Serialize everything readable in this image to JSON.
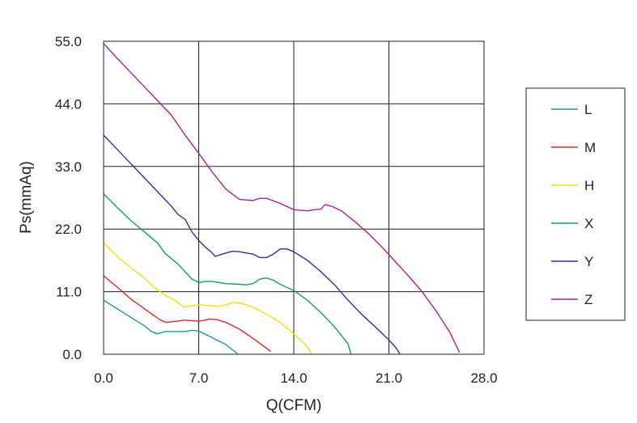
{
  "chart_data": {
    "type": "line",
    "xlabel": "Q(CFM)",
    "ylabel": "Ps(mmAq)",
    "xlim": [
      0,
      28
    ],
    "ylim": [
      0,
      55
    ],
    "x_ticks": [
      "0.0",
      "7.0",
      "14.0",
      "21.0",
      "28.0"
    ],
    "y_ticks": [
      "0.0",
      "11.0",
      "22.0",
      "33.0",
      "44.0",
      "55.0"
    ],
    "grid": true,
    "legend_position": "right",
    "series": [
      {
        "name": "L",
        "color": "#1a9a8c",
        "points": [
          [
            0,
            9.5
          ],
          [
            1,
            8
          ],
          [
            2,
            6.5
          ],
          [
            3,
            5
          ],
          [
            3.5,
            4
          ],
          [
            4,
            3.6
          ],
          [
            4.5,
            4
          ],
          [
            5.5,
            4
          ],
          [
            6,
            4
          ],
          [
            6.5,
            4.2
          ],
          [
            7,
            4.1
          ],
          [
            7.5,
            3.5
          ],
          [
            8,
            2.9
          ],
          [
            9,
            1.7
          ],
          [
            9.9,
            0
          ]
        ]
      },
      {
        "name": "M",
        "color": "#e02a2a",
        "points": [
          [
            0,
            13.8
          ],
          [
            1,
            11.8
          ],
          [
            2,
            9.7
          ],
          [
            3,
            8
          ],
          [
            3.7,
            6.8
          ],
          [
            4.2,
            6
          ],
          [
            4.6,
            5.6
          ],
          [
            5,
            5.7
          ],
          [
            6,
            6
          ],
          [
            7,
            5.8
          ],
          [
            7.5,
            6
          ],
          [
            7.8,
            6.2
          ],
          [
            8.3,
            6.1
          ],
          [
            9,
            5.6
          ],
          [
            9.5,
            5
          ],
          [
            10,
            4.4
          ],
          [
            11,
            2.8
          ],
          [
            12.3,
            0.5
          ]
        ]
      },
      {
        "name": "H",
        "color": "#f2e010",
        "points": [
          [
            0,
            19.6
          ],
          [
            1,
            17.2
          ],
          [
            2,
            15.2
          ],
          [
            3,
            13.4
          ],
          [
            3.7,
            11.8
          ],
          [
            4.5,
            10.4
          ],
          [
            5.3,
            9.4
          ],
          [
            5.9,
            8.3
          ],
          [
            6.5,
            8.5
          ],
          [
            7,
            8.7
          ],
          [
            8,
            8.5
          ],
          [
            8.5,
            8.4
          ],
          [
            9,
            8.7
          ],
          [
            9.5,
            9.1
          ],
          [
            10,
            9
          ],
          [
            10.5,
            8.7
          ],
          [
            11,
            8.3
          ],
          [
            12,
            7
          ],
          [
            13,
            5.6
          ],
          [
            13.9,
            3.8
          ],
          [
            14.5,
            2.5
          ],
          [
            15,
            1.3
          ],
          [
            15.3,
            0.1
          ]
        ]
      },
      {
        "name": "X",
        "color": "#15a05a",
        "points": [
          [
            0,
            28.2
          ],
          [
            1,
            25.8
          ],
          [
            2,
            23.5
          ],
          [
            3,
            21.5
          ],
          [
            4,
            19.5
          ],
          [
            4.5,
            17.8
          ],
          [
            5.5,
            15.8
          ],
          [
            6,
            14.5
          ],
          [
            6.5,
            13.2
          ],
          [
            7,
            12.6
          ],
          [
            7.5,
            12.8
          ],
          [
            8,
            12.8
          ],
          [
            9,
            12.4
          ],
          [
            10,
            12.3
          ],
          [
            10.5,
            12.2
          ],
          [
            11,
            12.4
          ],
          [
            11.5,
            13.2
          ],
          [
            12,
            13.4
          ],
          [
            12.5,
            13
          ],
          [
            13,
            12.3
          ],
          [
            14,
            11.2
          ],
          [
            15,
            9.5
          ],
          [
            16,
            7.3
          ],
          [
            17,
            4.8
          ],
          [
            17.5,
            3.3
          ],
          [
            18,
            1.8
          ],
          [
            18.2,
            0.1
          ]
        ]
      },
      {
        "name": "Y",
        "color": "#2a3492",
        "points": [
          [
            0,
            38.5
          ],
          [
            1,
            36
          ],
          [
            2,
            33.5
          ],
          [
            3,
            31
          ],
          [
            4,
            28.5
          ],
          [
            5,
            26
          ],
          [
            5.5,
            24.5
          ],
          [
            6,
            23.7
          ],
          [
            6.5,
            21.5
          ],
          [
            7,
            20
          ],
          [
            7.5,
            18.8
          ],
          [
            8,
            17.8
          ],
          [
            8.2,
            17.2
          ],
          [
            9,
            17.8
          ],
          [
            9.5,
            18.1
          ],
          [
            10,
            18
          ],
          [
            11,
            17.6
          ],
          [
            11.5,
            17
          ],
          [
            12,
            17
          ],
          [
            12.5,
            17.6
          ],
          [
            13,
            18.5
          ],
          [
            13.5,
            18.5
          ],
          [
            14,
            18
          ],
          [
            15,
            16.5
          ],
          [
            16,
            14.5
          ],
          [
            17,
            12.2
          ],
          [
            18,
            9.5
          ],
          [
            19,
            7
          ],
          [
            20,
            4.8
          ],
          [
            21,
            2.5
          ],
          [
            21.5,
            1.2
          ],
          [
            21.8,
            0.1
          ]
        ]
      },
      {
        "name": "Z",
        "color": "#b0208f",
        "points": [
          [
            0,
            54.6
          ],
          [
            1,
            52
          ],
          [
            2,
            49.5
          ],
          [
            3,
            47
          ],
          [
            4,
            44.5
          ],
          [
            5,
            42
          ],
          [
            6,
            38.5
          ],
          [
            7,
            35.3
          ],
          [
            8,
            32
          ],
          [
            9,
            29
          ],
          [
            10,
            27.2
          ],
          [
            11,
            27
          ],
          [
            11.5,
            27.4
          ],
          [
            12,
            27.4
          ],
          [
            13,
            26.5
          ],
          [
            14,
            25.4
          ],
          [
            15,
            25.2
          ],
          [
            15.5,
            25.4
          ],
          [
            16,
            25.5
          ],
          [
            16.3,
            26.3
          ],
          [
            16.8,
            26
          ],
          [
            17.5,
            25.2
          ],
          [
            18.5,
            23.3
          ],
          [
            19.5,
            21.2
          ],
          [
            20.5,
            18.8
          ],
          [
            21.5,
            16.2
          ],
          [
            22.5,
            13.6
          ],
          [
            23.5,
            10.8
          ],
          [
            24.5,
            7.5
          ],
          [
            25.5,
            3.8
          ],
          [
            26.2,
            0.3
          ]
        ]
      }
    ]
  }
}
